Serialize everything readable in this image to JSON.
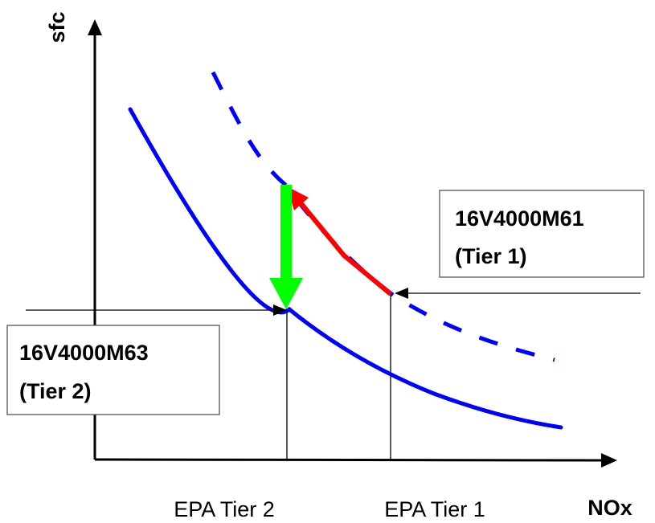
{
  "axes": {
    "y_title": "sfc",
    "x_title": "NOx"
  },
  "x_markers": {
    "tier2": "EPA Tier 2",
    "tier1": "EPA Tier 1"
  },
  "engines": {
    "tier1_model": "16V4000M61",
    "tier1_level": "(Tier 1)",
    "tier2_model": "16V4000M63",
    "tier2_level": "(Tier 2)"
  },
  "colors": {
    "curve": "#0000ff",
    "improvement_arrow": "#00ff00",
    "tradeoff_arrow": "#ff0000",
    "axis": "#000000"
  }
}
